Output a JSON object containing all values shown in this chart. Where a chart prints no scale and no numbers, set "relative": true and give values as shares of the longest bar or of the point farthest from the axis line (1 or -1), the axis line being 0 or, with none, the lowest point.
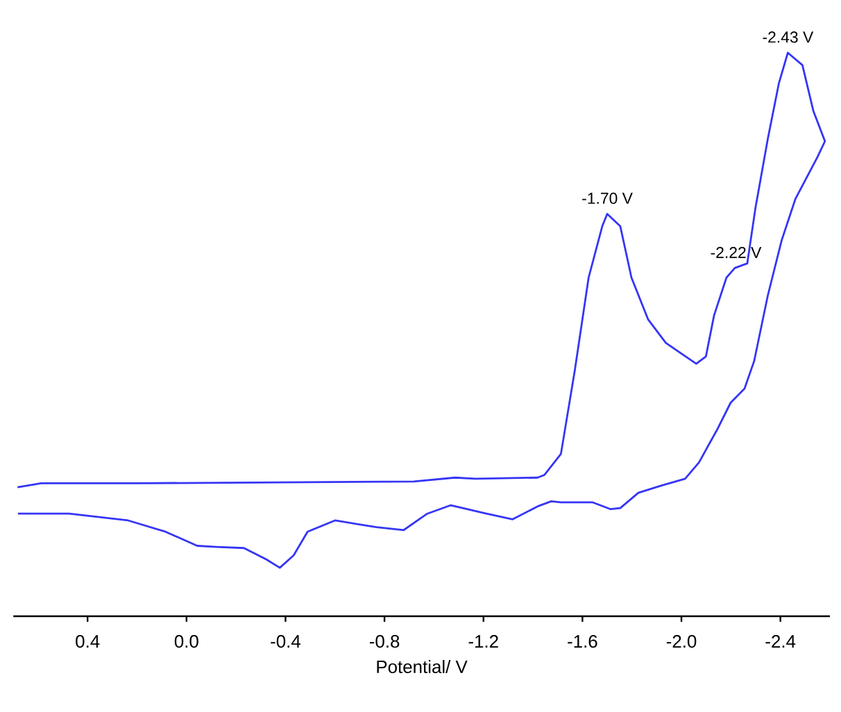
{
  "chart_data": {
    "type": "line",
    "relative": true,
    "xlabel": "Potential/ V",
    "xlim": [
      0.7,
      -2.6
    ],
    "xticks": [
      0.4,
      {
        "value": 0,
        "label": "0.0"
      },
      -0.4,
      -0.8,
      -1.2,
      -1.6,
      {
        "value": -2,
        "label": "-2.0"
      },
      -2.4
    ],
    "annotations": [
      {
        "text": "-1.70 V",
        "x": -1.7,
        "y": 0.714
      },
      {
        "text": "-2.22 V",
        "x": -2.22,
        "y": 0.618
      },
      {
        "text": "-2.43 V",
        "x": -2.43,
        "y": 1.0
      }
    ],
    "series": [
      {
        "color": "#3535f5",
        "x": [
          0.683,
          0.587,
          0.197,
          -0.918,
          -1.085,
          -1.168,
          -1.419,
          -1.447,
          -1.513,
          -1.569,
          -1.625,
          -1.68,
          -1.7,
          -1.753,
          -1.798,
          -1.865,
          -1.937,
          -2.06,
          -2.099,
          -2.132,
          -2.182,
          -2.216,
          -2.266,
          -2.299,
          -2.349,
          -2.394,
          -2.43,
          -2.489,
          -2.533,
          -2.58,
          -2.55,
          -2.461,
          -2.405,
          -2.349,
          -2.294,
          -2.255,
          -2.199,
          -2.143,
          -2.071,
          -2.015,
          -1.92,
          -1.826,
          -1.753,
          -1.714,
          -1.642,
          -1.513,
          -1.474,
          -1.419,
          -1.318,
          -1.212,
          -1.068,
          -0.973,
          -0.878,
          -0.767,
          -0.6,
          -0.489,
          -0.433,
          -0.377,
          -0.322,
          -0.232,
          -0.121,
          -0.043,
          0.085,
          0.236,
          0.475,
          0.681
        ],
        "values": [
          0.229,
          0.236,
          0.236,
          0.239,
          0.246,
          0.244,
          0.246,
          0.251,
          0.288,
          0.436,
          0.601,
          0.692,
          0.714,
          0.692,
          0.601,
          0.527,
          0.485,
          0.448,
          0.461,
          0.534,
          0.601,
          0.618,
          0.626,
          0.724,
          0.847,
          0.946,
          1.0,
          0.978,
          0.897,
          0.843,
          0.815,
          0.741,
          0.667,
          0.569,
          0.453,
          0.404,
          0.379,
          0.33,
          0.273,
          0.244,
          0.232,
          0.219,
          0.192,
          0.19,
          0.202,
          0.202,
          0.204,
          0.195,
          0.172,
          0.182,
          0.197,
          0.182,
          0.153,
          0.158,
          0.17,
          0.15,
          0.108,
          0.086,
          0.101,
          0.121,
          0.123,
          0.125,
          0.15,
          0.17,
          0.182,
          0.182
        ]
      }
    ]
  }
}
